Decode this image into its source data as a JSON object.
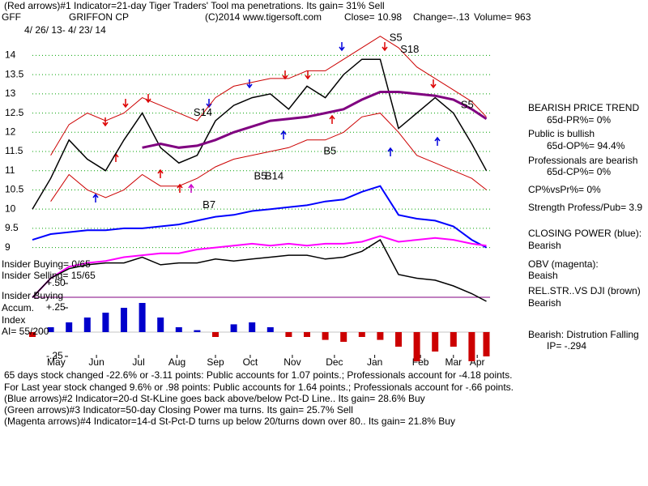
{
  "header": {
    "title": "(Red arrows)#1 Indicator=21-day Tiger Traders' Tool ma penetrations.  Its gain= 31% Sell",
    "symbol": "GFF",
    "company": "GRIFFON CP",
    "copyright": "(C)2014 www.tigersoft.com",
    "close": "Close=  10.98",
    "change": "Change=-.13",
    "volume": "Volume= 963",
    "dates": "4/ 26/ 13- 4/ 23/ 14"
  },
  "side_notes": [
    "BEARISH PRICE TREND",
    "65d-PR%= 0%",
    "Public is bullish",
    "65d-OP%= 94.4%",
    "Professionals are bearish",
    "65d-CP%= 0%",
    "CP%vsPr%=  0%",
    "Strength Profess/Pub= 3.9",
    "CLOSING POWER (blue):",
    "Bearish",
    "OBV (magenta):",
    "Beaish",
    "REL.STR..VS DJI (brown)",
    "Bearish",
    "Bearish: Distrution Falling",
    "IP= -.294"
  ],
  "left_notes": [
    "Insider Buying= 0/65",
    "Insider Selling= 15/65",
    "Insider Buying",
    "Accum.",
    "Index",
    "AI= 55/200"
  ],
  "footer": [
    "65 days stock changed -22.6% or -3.11 points:  Public accounts for  1.07 points.;  Professionals account for -4.18 points.",
    "For Last year stock changed  9.6% or  .98 points:  Public accounts for  1.64 points.;  Professionals account for -.66 points.",
    "(Blue arrows)#2 Indicator=20-d St-KLine goes back above/below Pct-D Line..  Its gain= 28.6% Buy",
    "(Green arrows)#3 Indicator=50-day Closing Power ma turns.  Its gain= 25.7% Sell",
    "(Magenta arrows)#4 Indicator=14-d St-Pct-D turns up below 20/turns down over 80..  Its gain= 21.8% Buy"
  ],
  "chart_data": {
    "type": "line",
    "x": [
      0,
      10,
      20,
      30,
      40,
      50,
      60,
      70,
      80,
      90,
      100,
      110,
      120,
      130,
      140,
      150,
      160,
      170,
      180,
      190,
      200,
      210,
      220,
      230,
      240,
      248
    ],
    "xlim": [
      0,
      250
    ],
    "xticks": [
      {
        "value": 13,
        "label": "May"
      },
      {
        "value": 35,
        "label": "Jun"
      },
      {
        "value": 58,
        "label": "Jul"
      },
      {
        "value": 79,
        "label": "Aug"
      },
      {
        "value": 100,
        "label": "Sep"
      },
      {
        "value": 119,
        "label": "Oct"
      },
      {
        "value": 142,
        "label": "Nov"
      },
      {
        "value": 165,
        "label": "Dec"
      },
      {
        "value": 187,
        "label": "Jan"
      },
      {
        "value": 212,
        "label": "Feb"
      },
      {
        "value": 230,
        "label": "Mar"
      },
      {
        "value": 243,
        "label": "Apr"
      }
    ],
    "ylim": [
      7.6,
      15
    ],
    "yticks": [
      9,
      9.5,
      10,
      10.5,
      11,
      11.5,
      12,
      12.5,
      13,
      13.5,
      14
    ],
    "grid": true,
    "grid_color": "#00a000",
    "y2lim": [
      -0.3,
      0.5
    ],
    "y2ticks": [
      {
        "value": 0.5,
        "label": "+.50"
      },
      {
        "value": 0.25,
        "label": "+.25"
      },
      {
        "value": -0.25,
        "label": "-.25"
      }
    ],
    "series": [
      {
        "color": "#000000",
        "width": 1.5,
        "values": [
          10.0,
          10.8,
          11.8,
          11.3,
          11.0,
          11.8,
          12.5,
          11.6,
          11.2,
          11.4,
          12.3,
          12.7,
          12.9,
          13.0,
          12.6,
          13.2,
          12.9,
          13.5,
          13.9,
          13.9,
          12.1,
          12.5,
          12.9,
          12.5,
          11.7,
          11.0
        ]
      },
      {
        "color": "#800080",
        "width": 3,
        "values": [
          null,
          null,
          null,
          null,
          null,
          null,
          11.6,
          11.7,
          11.6,
          11.65,
          11.8,
          12.0,
          12.15,
          12.3,
          12.35,
          12.4,
          12.5,
          12.6,
          12.85,
          13.05,
          13.05,
          13.0,
          12.95,
          12.85,
          12.6,
          12.35
        ]
      },
      {
        "color": "#cc0000",
        "width": 1,
        "values": [
          null,
          11.4,
          12.2,
          12.5,
          12.3,
          12.5,
          12.9,
          12.7,
          12.5,
          12.3,
          12.9,
          13.2,
          13.3,
          13.4,
          13.4,
          13.6,
          13.6,
          13.9,
          14.2,
          14.5,
          14.2,
          13.7,
          13.4,
          13.1,
          12.8,
          12.4
        ]
      },
      {
        "color": "#cc0000",
        "width": 1,
        "values": [
          null,
          10.2,
          10.9,
          10.5,
          10.3,
          10.5,
          10.9,
          10.6,
          10.6,
          10.8,
          11.1,
          11.3,
          11.4,
          11.5,
          11.6,
          11.8,
          11.8,
          12.0,
          12.4,
          12.5,
          12.0,
          11.4,
          11.2,
          11.0,
          10.8,
          10.5
        ]
      },
      {
        "color": "#0000ff",
        "width": 2,
        "values": [
          9.2,
          9.35,
          9.4,
          9.45,
          9.45,
          9.5,
          9.5,
          9.55,
          9.6,
          9.7,
          9.8,
          9.85,
          9.95,
          10.0,
          10.05,
          10.1,
          10.2,
          10.25,
          10.45,
          10.6,
          9.85,
          9.75,
          9.7,
          9.55,
          9.2,
          9.0
        ]
      },
      {
        "color": "#ff00ff",
        "width": 2,
        "values": [
          7.7,
          8.2,
          8.5,
          8.6,
          8.65,
          8.75,
          8.8,
          8.85,
          8.85,
          8.95,
          9.0,
          9.05,
          9.1,
          9.05,
          9.1,
          9.05,
          9.1,
          9.1,
          9.15,
          9.3,
          9.15,
          9.2,
          9.25,
          9.2,
          9.1,
          9.05
        ]
      },
      {
        "color": "#000000",
        "width": 1.5,
        "values": [
          7.7,
          8.2,
          8.45,
          8.55,
          8.6,
          8.6,
          8.75,
          8.55,
          8.6,
          8.6,
          8.7,
          8.65,
          8.7,
          8.75,
          8.8,
          8.8,
          8.7,
          8.75,
          8.9,
          9.2,
          8.3,
          8.2,
          8.15,
          8.0,
          7.8,
          7.6
        ]
      },
      {
        "type": "bar",
        "axis": "y2",
        "color_positive": "#0000cc",
        "color_negative": "#cc0000",
        "values": [
          -0.05,
          0.05,
          0.1,
          0.15,
          0.2,
          0.25,
          0.3,
          0.15,
          0.05,
          0.02,
          -0.05,
          0.08,
          0.1,
          0.05,
          -0.05,
          -0.05,
          -0.08,
          -0.1,
          -0.05,
          -0.08,
          -0.15,
          -0.3,
          -0.2,
          -0.15,
          -0.3,
          -0.25
        ]
      }
    ],
    "annotations": [
      {
        "text": "S5",
        "x": 195,
        "y": 14.45
      },
      {
        "text": "S18",
        "x": 201,
        "y": 14.15
      },
      {
        "text": "S14",
        "x": 88,
        "y": 12.5
      },
      {
        "text": "B7",
        "x": 93,
        "y": 10.1
      },
      {
        "text": "B5",
        "x": 159,
        "y": 11.5
      },
      {
        "text": "B5",
        "x": 121,
        "y": 10.85
      },
      {
        "text": "B14",
        "x": 127,
        "y": 10.85
      },
      {
        "text": "S5",
        "x": 234,
        "y": 12.7
      }
    ]
  }
}
